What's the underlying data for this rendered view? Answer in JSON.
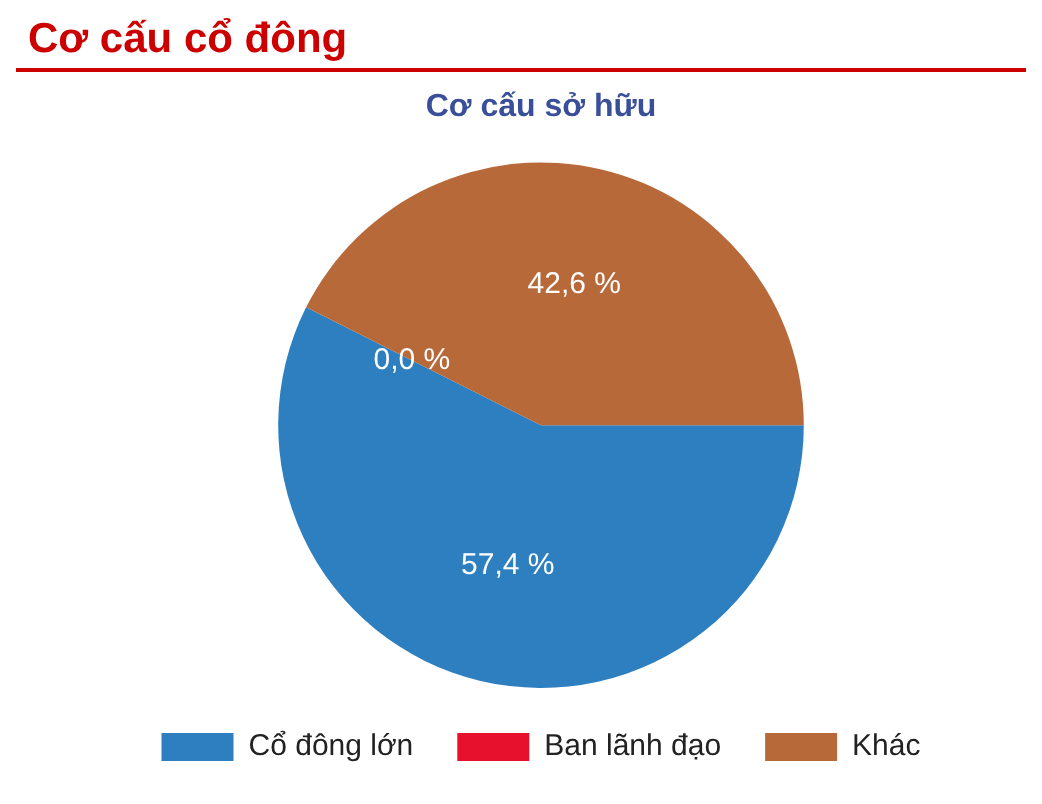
{
  "chart_data": {
    "type": "pie",
    "title": "Cơ cấu cổ đông",
    "subtitle": "Cơ cấu sở hữu",
    "categories": [
      "Cổ đông lớn",
      "Ban lãnh đạo",
      "Khác"
    ],
    "values": [
      57.4,
      0.0,
      42.6
    ],
    "value_labels": [
      "57,4 %",
      "0,0 %",
      "42,6 %"
    ],
    "colors": [
      "#2e7fbf",
      "#e8112d",
      "#b8693a"
    ],
    "legend": "bottom"
  }
}
